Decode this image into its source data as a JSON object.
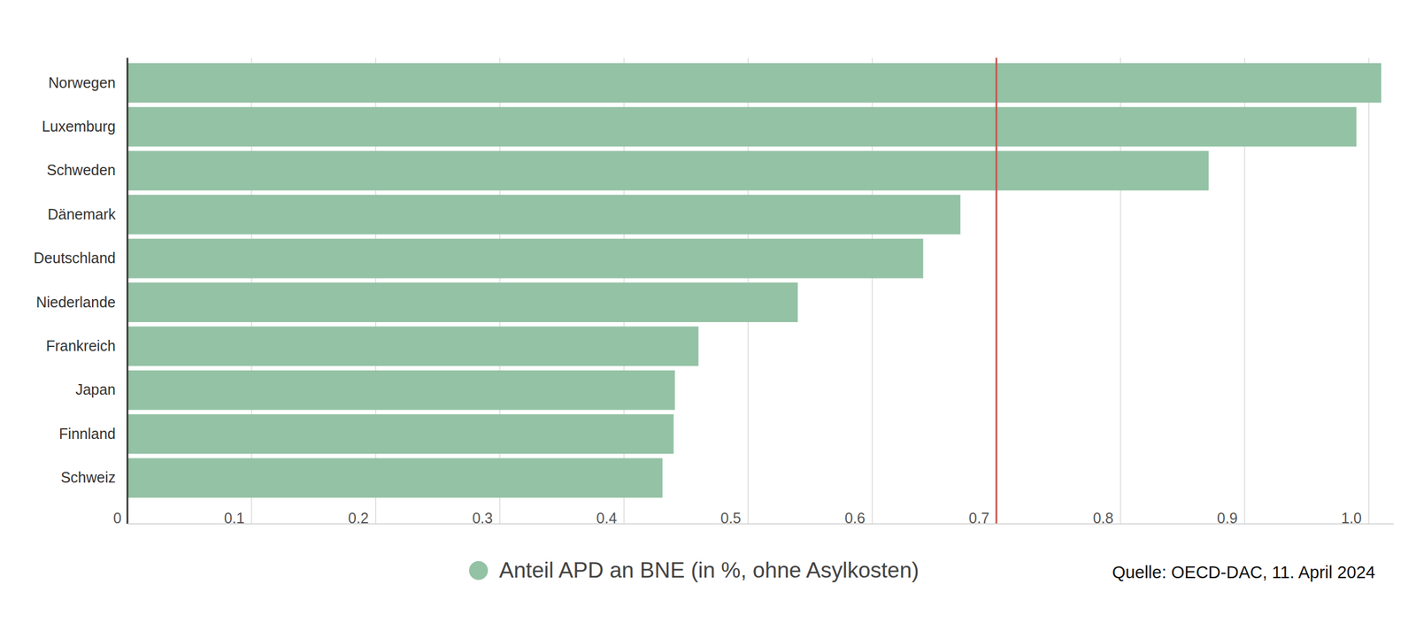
{
  "chart_data": {
    "type": "bar",
    "orientation": "horizontal",
    "categories": [
      "Norwegen",
      "Luxemburg",
      "Schweden",
      "Dänemark",
      "Deutschland",
      "Niederlande",
      "Frankreich",
      "Japan",
      "Finnland",
      "Schweiz"
    ],
    "series": [
      {
        "name": "Anteil APD an BNE (in %, ohne Asylkosten)",
        "color": "#94c2a5",
        "values": [
          1.01,
          0.99,
          0.871,
          0.671,
          0.641,
          0.54,
          0.46,
          0.441,
          0.44,
          0.431
        ]
      }
    ],
    "xlim": [
      0,
      1.02
    ],
    "xticks": [
      0,
      0.1,
      0.2,
      0.3,
      0.4,
      0.5,
      0.6,
      0.7,
      0.8,
      0.9,
      {
        "value": 1,
        "label": "1.0"
      }
    ],
    "target": 0.7,
    "grid": true,
    "legend": "bottom",
    "source": "Quelle: OECD-DAC, 11. April 2024"
  }
}
